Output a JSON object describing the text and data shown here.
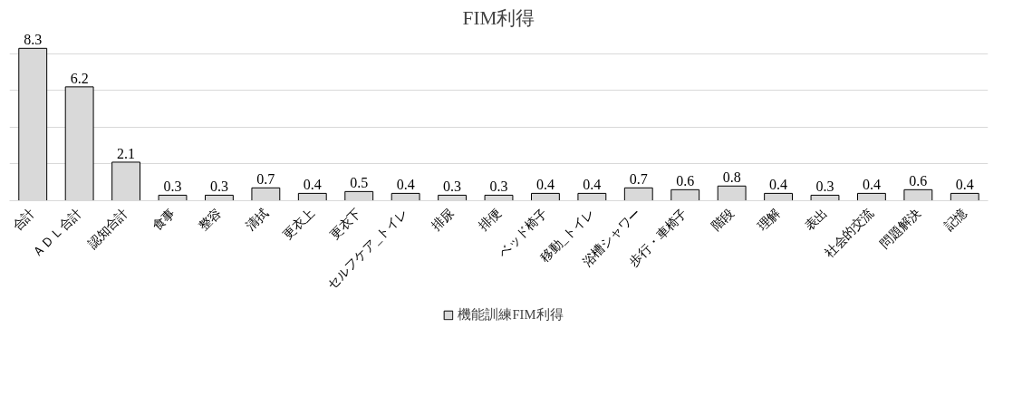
{
  "chart_data": {
    "type": "bar",
    "title": "FIM利得",
    "categories": [
      "合計",
      "ＡＤＬ合計",
      "認知合計",
      "食事",
      "整容",
      "清拭",
      "更衣上",
      "更衣下",
      "セルフケア_トイレ",
      "排尿",
      "排便",
      "ベッド椅子",
      "移動_トイレ",
      "浴槽シャワー",
      "歩行・車椅子",
      "階段",
      "理解",
      "表出",
      "社会的交流",
      "問題解決",
      "記憶"
    ],
    "series": [
      {
        "name": "機能訓練FIM利得",
        "color": "#d9d9d9",
        "values": [
          8.3,
          6.2,
          2.1,
          0.3,
          0.3,
          0.7,
          0.4,
          0.5,
          0.4,
          0.3,
          0.3,
          0.4,
          0.4,
          0.7,
          0.6,
          0.8,
          0.4,
          0.3,
          0.4,
          0.6,
          0.4
        ]
      }
    ],
    "tick_labels": "x",
    "grid": "y",
    "legend": "bottom",
    "data_labels": true
  }
}
